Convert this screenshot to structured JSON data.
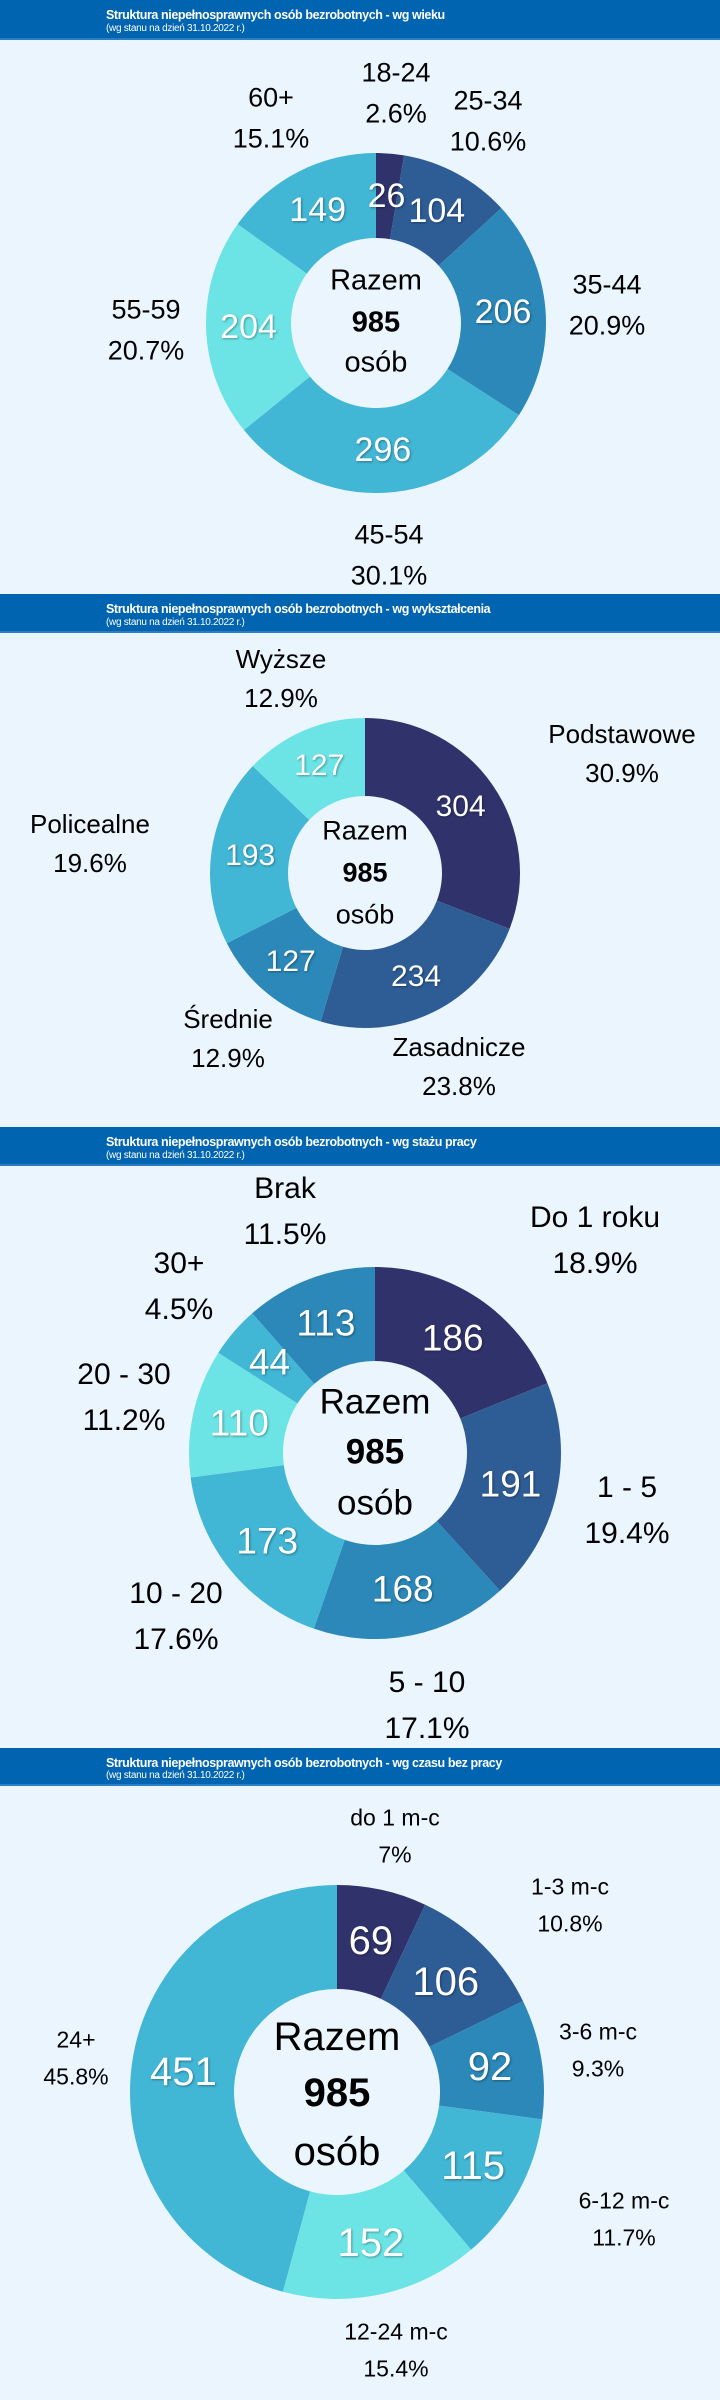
{
  "charts": [
    {
      "title": "Struktura niepełnosprawnych osób bezrobotnych - wg wieku",
      "subtitle": "(wg stanu na dzień 31.10.2022 r.)",
      "center": {
        "line1": "Razem",
        "total": "985",
        "line2": "osób"
      },
      "chart_type": "donut",
      "slices": [
        {
          "label": "18-24",
          "value": 26,
          "percent": "2.6%",
          "color": "#30336b"
        },
        {
          "label": "25-34",
          "value": 104,
          "percent": "10.6%",
          "color": "#2e5d96"
        },
        {
          "label": "35-44",
          "value": 206,
          "percent": "20.9%",
          "color": "#2b88b8"
        },
        {
          "label": "45-54",
          "value": 296,
          "percent": "30.1%",
          "color": "#41b6d5"
        },
        {
          "label": "55-59",
          "value": 204,
          "percent": "20.7%",
          "color": "#6ce4e6"
        },
        {
          "label": "60+",
          "value": 149,
          "percent": "15.1%",
          "color": "#41b6d5"
        }
      ]
    },
    {
      "title": "Struktura niepełnosprawnych osób bezrobotnych - wg wykształcenia",
      "subtitle": "(wg stanu na dzień 31.10.2022 r.)",
      "center": {
        "line1": "Razem",
        "total": "985",
        "line2": "osób"
      },
      "chart_type": "donut",
      "slices": [
        {
          "label": "Podstawowe",
          "value": 304,
          "percent": "30.9%",
          "color": "#30336b"
        },
        {
          "label": "Zasadnicze",
          "value": 234,
          "percent": "23.8%",
          "color": "#2e5d96"
        },
        {
          "label": "Średnie",
          "value": 127,
          "percent": "12.9%",
          "color": "#2b88b8"
        },
        {
          "label": "Policealne",
          "value": 193,
          "percent": "19.6%",
          "color": "#41b6d5"
        },
        {
          "label": "Wyższe",
          "value": 127,
          "percent": "12.9%",
          "color": "#6ce4e6"
        }
      ]
    },
    {
      "title": "Struktura niepełnosprawnych osób bezrobotnych - wg stażu pracy",
      "subtitle": "(wg stanu na dzień 31.10.2022 r.)",
      "center": {
        "line1": "Razem",
        "total": "985",
        "line2": "osób"
      },
      "chart_type": "donut",
      "slices": [
        {
          "label": "Do 1 roku",
          "value": 186,
          "percent": "18.9%",
          "color": "#30336b"
        },
        {
          "label": "1 - 5",
          "value": 191,
          "percent": "19.4%",
          "color": "#2e5d96"
        },
        {
          "label": "5 - 10",
          "value": 168,
          "percent": "17.1%",
          "color": "#2b88b8"
        },
        {
          "label": "10 - 20",
          "value": 173,
          "percent": "17.6%",
          "color": "#41b6d5"
        },
        {
          "label": "20 - 30",
          "value": 110,
          "percent": "11.2%",
          "color": "#6ce4e6"
        },
        {
          "label": "30+",
          "value": 44,
          "percent": "4.5%",
          "color": "#41b6d5"
        },
        {
          "label": "Brak",
          "value": 113,
          "percent": "11.5%",
          "color": "#2b88b8"
        }
      ]
    },
    {
      "title": "Struktura niepełnosprawnych osób bezrobotnych - wg czasu bez pracy",
      "subtitle": "(wg stanu na dzień 31.10.2022 r.)",
      "center": {
        "line1": "Razem",
        "total": "985",
        "line2": "osób"
      },
      "chart_type": "donut",
      "slices": [
        {
          "label": "do 1 m-c",
          "value": 69,
          "percent": "7%",
          "color": "#30336b"
        },
        {
          "label": "1-3 m-c",
          "value": 106,
          "percent": "10.8%",
          "color": "#2e5d96"
        },
        {
          "label": "3-6 m-c",
          "value": 92,
          "percent": "9.3%",
          "color": "#2b88b8"
        },
        {
          "label": "6-12 m-c",
          "value": 115,
          "percent": "11.7%",
          "color": "#41b6d5"
        },
        {
          "label": "12-24 m-c",
          "value": 152,
          "percent": "15.4%",
          "color": "#6ce4e6"
        },
        {
          "label": "24+",
          "value": 451,
          "percent": "45.8%",
          "color": "#41b6d5"
        }
      ]
    }
  ]
}
